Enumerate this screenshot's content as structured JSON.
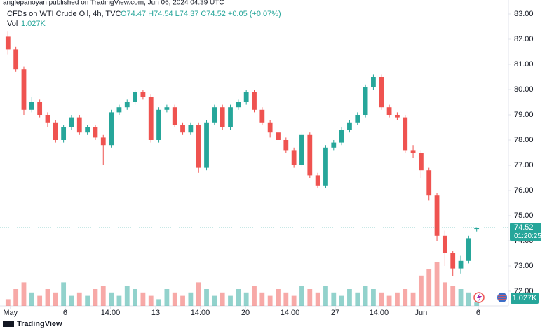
{
  "chart_data": {
    "type": "candlestick",
    "attribution": "anglepanoyan published on TradingView.com, Jun 06, 2024 04:39 UTC",
    "title": "CFDs on WTI Crude Oil, 4h, TVC",
    "ohlc_legend": "O74.47 H74.54 L74.37 C74.52 +0.05 (+0.07%)",
    "volume_title": "Vol",
    "volume_label": "1.027K",
    "countdown": "01:20:25",
    "brand": "TradingView",
    "up_color": "#26a69a",
    "down_color": "#ef5350",
    "grid": false,
    "xlim": [
      -1,
      63
    ],
    "xticks": [
      {
        "value": 0.3,
        "label": "May"
      },
      {
        "value": 7.2,
        "label": "6"
      },
      {
        "value": 12.9,
        "label": "14:00"
      },
      {
        "value": 18.6,
        "label": "13"
      },
      {
        "value": 24.2,
        "label": "14:00"
      },
      {
        "value": 29.9,
        "label": "20"
      },
      {
        "value": 35.5,
        "label": "14:00"
      },
      {
        "value": 41.2,
        "label": "27"
      },
      {
        "value": 46.7,
        "label": "14:00"
      },
      {
        "value": 52,
        "label": "Jun"
      },
      {
        "value": 59.2,
        "label": "6"
      }
    ],
    "ylim": [
      72,
      83
    ],
    "yticks": [
      {
        "value": 83,
        "label": "83.00"
      },
      {
        "value": 82,
        "label": "82.00"
      },
      {
        "value": 81,
        "label": "81.00"
      },
      {
        "value": 80,
        "label": "80.00"
      },
      {
        "value": 79,
        "label": "79.00"
      },
      {
        "value": 78,
        "label": "78.00"
      },
      {
        "value": 77,
        "label": "77.00"
      },
      {
        "value": 76,
        "label": "76.00"
      },
      {
        "value": 75,
        "label": "75.00"
      },
      {
        "value": 74,
        "label": "74.00"
      },
      {
        "value": 73,
        "label": "73.00"
      },
      {
        "value": 72,
        "label": "72.00"
      }
    ],
    "volume_ylim": [
      0,
      15
    ],
    "open": [
      82.1,
      81.6,
      80.8,
      79.2,
      79.5,
      79.0,
      78.7,
      78.0,
      78.5,
      78.9,
      78.3,
      78.5,
      78.1,
      77.8,
      79.1,
      79.3,
      79.5,
      79.9,
      79.7,
      78.0,
      79.2,
      79.3,
      78.6,
      78.3,
      78.6,
      76.9,
      78.7,
      79.3,
      78.5,
      79.3,
      79.5,
      79.9,
      79.2,
      78.7,
      78.3,
      78.0,
      77.6,
      77.0,
      78.2,
      76.6,
      76.2,
      77.7,
      77.9,
      78.4,
      78.7,
      79.0,
      80.1,
      80.5,
      79.3,
      79.0,
      78.9,
      77.6,
      77.5,
      76.8,
      75.8,
      74.2,
      73.5,
      72.9,
      73.2,
      74.47
    ],
    "high": [
      82.3,
      81.7,
      80.9,
      79.7,
      79.6,
      79.1,
      78.8,
      78.6,
      79.0,
      79.0,
      78.6,
      78.6,
      78.2,
      79.2,
      79.4,
      79.6,
      80.0,
      80.0,
      79.8,
      79.3,
      79.4,
      79.4,
      78.7,
      78.7,
      78.7,
      78.8,
      79.4,
      79.4,
      79.4,
      79.6,
      80.0,
      80.0,
      79.3,
      78.8,
      78.4,
      78.1,
      77.7,
      78.3,
      78.3,
      76.7,
      77.8,
      78.0,
      78.5,
      78.8,
      79.1,
      80.2,
      80.6,
      80.6,
      79.4,
      79.1,
      79.0,
      77.8,
      77.6,
      76.9,
      75.9,
      74.4,
      73.6,
      73.4,
      74.2,
      74.54
    ],
    "low": [
      81.4,
      80.7,
      79.0,
      79.1,
      78.9,
      78.5,
      77.9,
      77.9,
      78.4,
      78.2,
      78.2,
      78.0,
      77.0,
      77.7,
      79.0,
      79.2,
      79.4,
      79.6,
      77.9,
      77.9,
      79.1,
      78.5,
      78.2,
      78.2,
      76.7,
      76.8,
      78.6,
      78.4,
      78.4,
      79.2,
      79.4,
      79.1,
      78.6,
      78.1,
      77.9,
      77.5,
      76.9,
      76.9,
      76.5,
      76.1,
      76.1,
      77.6,
      77.8,
      78.3,
      78.6,
      78.9,
      80.0,
      79.2,
      78.9,
      78.8,
      77.5,
      77.3,
      76.5,
      75.6,
      74.0,
      73.0,
      72.6,
      72.7,
      73.1,
      74.37
    ],
    "close": [
      81.6,
      80.8,
      79.2,
      79.5,
      79.0,
      78.7,
      78.0,
      78.5,
      78.9,
      78.3,
      78.5,
      78.1,
      77.8,
      79.1,
      79.3,
      79.5,
      79.9,
      79.7,
      78.0,
      79.2,
      79.3,
      78.6,
      78.3,
      78.6,
      76.9,
      78.7,
      79.3,
      78.5,
      79.3,
      79.5,
      79.9,
      79.2,
      78.7,
      78.3,
      78.0,
      77.6,
      77.0,
      78.2,
      76.6,
      76.2,
      77.7,
      77.9,
      78.4,
      78.7,
      79.0,
      80.1,
      80.5,
      79.3,
      79.0,
      78.9,
      77.6,
      77.5,
      76.8,
      75.8,
      74.2,
      73.5,
      72.9,
      73.2,
      74.1,
      74.52
    ],
    "volume": [
      2,
      5,
      7,
      4,
      3,
      5,
      4,
      7,
      3,
      4,
      3,
      5,
      6,
      4,
      3,
      6,
      5,
      4,
      3,
      2,
      5,
      4,
      3,
      4,
      7,
      5,
      3,
      4,
      3,
      5,
      4,
      6,
      4,
      3,
      5,
      4,
      3,
      6,
      5,
      4,
      6,
      4,
      3,
      5,
      4,
      6,
      5,
      4,
      3,
      4,
      5,
      4,
      9,
      11,
      13,
      7,
      6,
      5,
      4,
      1.027
    ]
  }
}
